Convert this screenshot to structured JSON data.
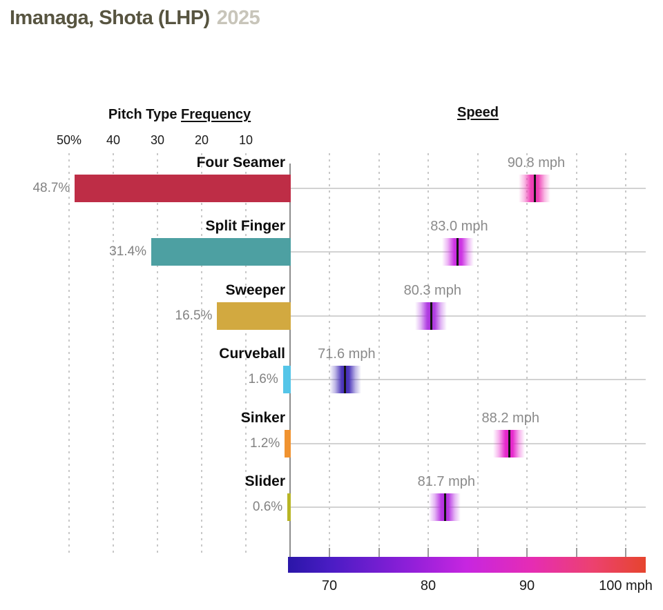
{
  "page_title": {
    "player": "Imanaga, Shota (LHP)",
    "season": "2025"
  },
  "headers": {
    "frequency_prefix": "Pitch Type",
    "frequency_underlined": "Frequency",
    "speed": "Speed"
  },
  "colors": {
    "title_text": "#575440",
    "season_text": "#c8c5ba",
    "label_gray": "#8a8a8a",
    "axis_line": "#8c8c8c",
    "row_line": "#d2d2d2",
    "gridline": "#c8c8c8",
    "marker_center_line": "#141414"
  },
  "chart_data": {
    "type": "bar",
    "title": "Imanaga, Shota (LHP) 2025",
    "categories": [
      "Four Seamer",
      "Split Finger",
      "Sweeper",
      "Curveball",
      "Sinker",
      "Slider"
    ],
    "series": [
      {
        "name": "Pitch Type Frequency (%)",
        "values": [
          48.7,
          31.4,
          16.5,
          1.6,
          1.2,
          0.6
        ]
      },
      {
        "name": "Average Speed (mph)",
        "values": [
          90.8,
          83.0,
          80.3,
          71.6,
          88.2,
          81.7
        ]
      }
    ],
    "pitches": [
      {
        "name": "Four Seamer",
        "frequency_pct": 48.7,
        "frequency_label": "48.7%",
        "speed_mph": 90.8,
        "speed_label": "90.8 mph",
        "bar_color": "#be2d46",
        "marker_color": "#ee3bb3"
      },
      {
        "name": "Split Finger",
        "frequency_pct": 31.4,
        "frequency_label": "31.4%",
        "speed_mph": 83.0,
        "speed_label": "83.0 mph",
        "bar_color": "#4da0a2",
        "marker_color": "#cb2ce2"
      },
      {
        "name": "Sweeper",
        "frequency_pct": 16.5,
        "frequency_label": "16.5%",
        "speed_mph": 80.3,
        "speed_label": "80.3 mph",
        "bar_color": "#d2a940",
        "marker_color": "#ad36e0"
      },
      {
        "name": "Curveball",
        "frequency_pct": 1.6,
        "frequency_label": "1.6%",
        "speed_mph": 71.6,
        "speed_label": "71.6 mph",
        "bar_color": "#55c5e8",
        "marker_color": "#4731b8"
      },
      {
        "name": "Sinker",
        "frequency_pct": 1.2,
        "frequency_label": "1.2%",
        "speed_mph": 88.2,
        "speed_label": "88.2 mph",
        "bar_color": "#f09330",
        "marker_color": "#e522cb"
      },
      {
        "name": "Slider",
        "frequency_pct": 0.6,
        "frequency_label": "0.6%",
        "speed_mph": 81.7,
        "speed_label": "81.7 mph",
        "bar_color": "#b8b525",
        "marker_color": "#b631e2"
      }
    ],
    "frequency_axis": {
      "tick_labels": [
        "50%",
        "40",
        "30",
        "20",
        "10"
      ],
      "tick_values": [
        50,
        40,
        30,
        20,
        10
      ],
      "direction": "right-to-left",
      "range": [
        0,
        52
      ]
    },
    "speed_axis": {
      "tick_labels": [
        "70",
        "80",
        "90",
        "100 mph"
      ],
      "tick_values": [
        70,
        80,
        90,
        100
      ],
      "gridline_values": [
        70,
        75,
        80,
        85,
        90,
        95,
        100
      ],
      "range": [
        65.8,
        102.3
      ],
      "unit": "mph"
    },
    "legend_gradient_stops": [
      {
        "color": "#2a16a8",
        "pos": 0
      },
      {
        "color": "#4a1cc4",
        "pos": 12
      },
      {
        "color": "#8c1fd8",
        "pos": 33
      },
      {
        "color": "#c726e0",
        "pos": 50
      },
      {
        "color": "#e52cb4",
        "pos": 68
      },
      {
        "color": "#ec4170",
        "pos": 85
      },
      {
        "color": "#e6452e",
        "pos": 100
      }
    ],
    "grid": "dashed vertical gridlines both panels",
    "legend_position": "bottom colorbar (speed, mph)"
  }
}
